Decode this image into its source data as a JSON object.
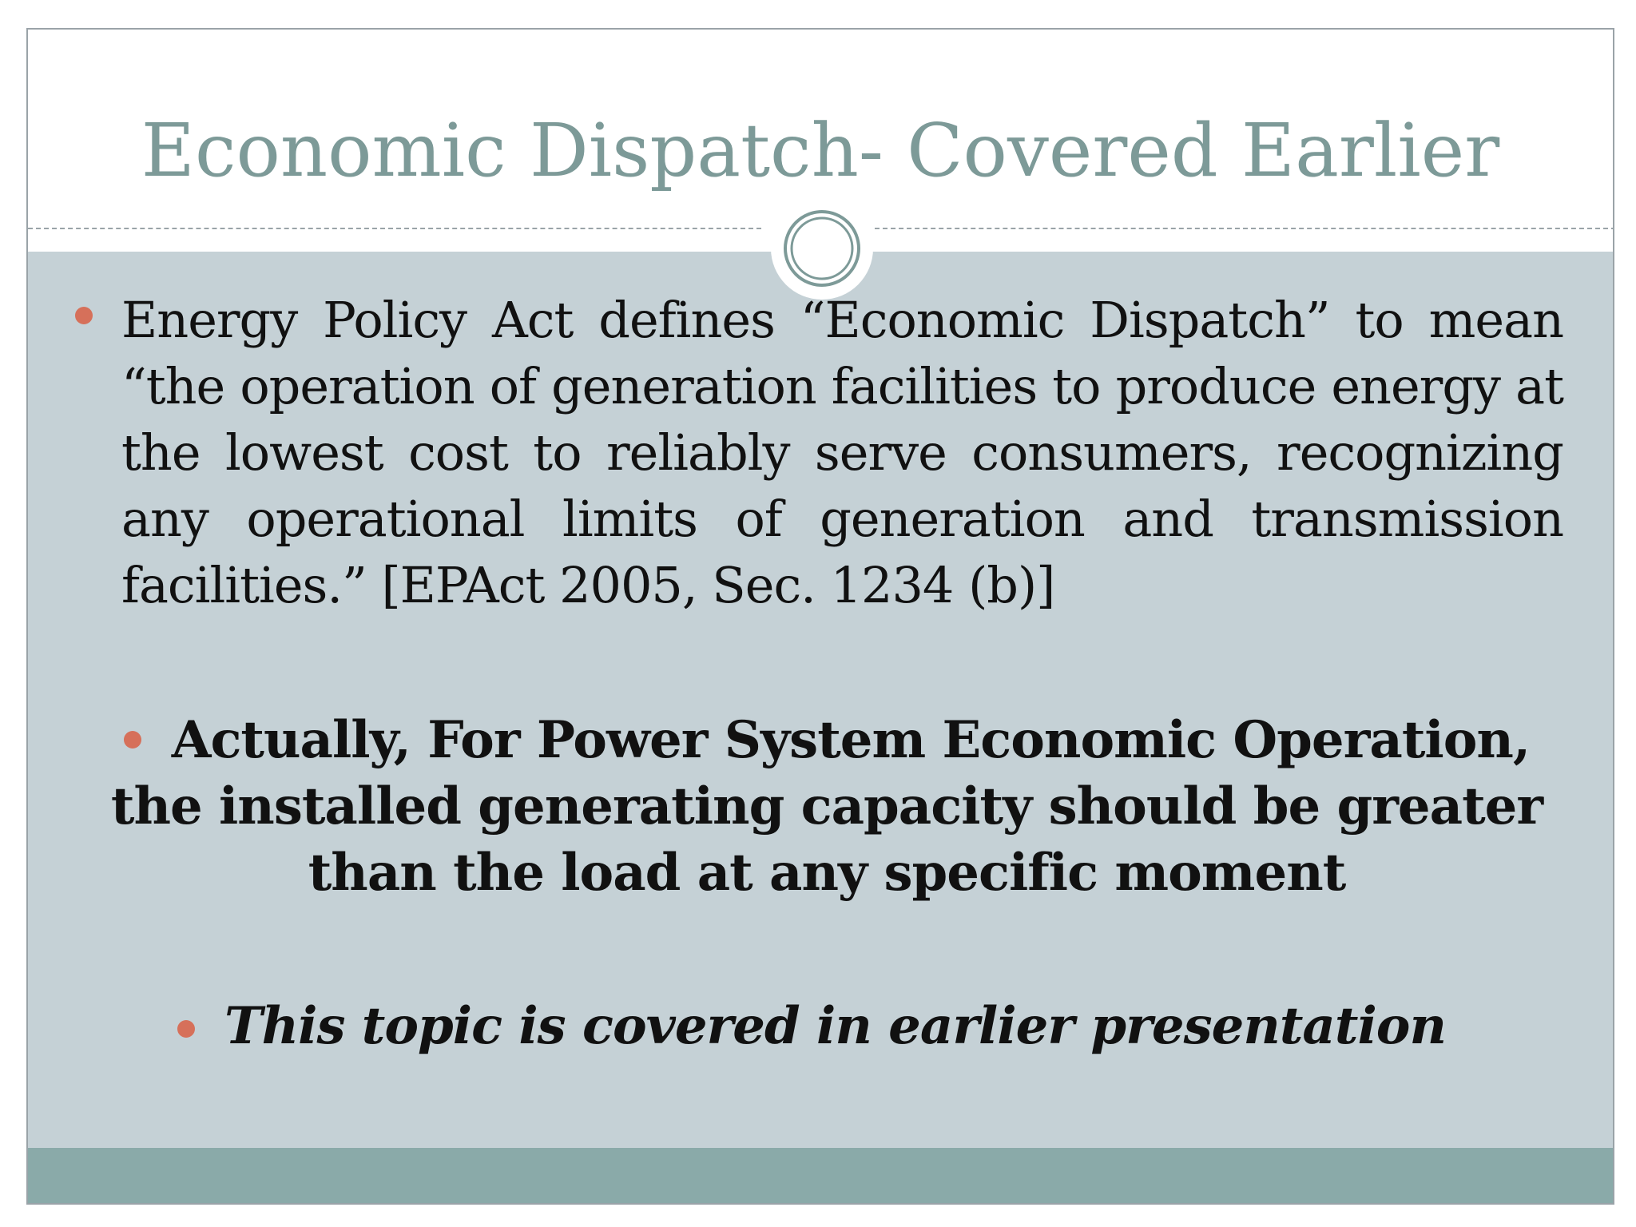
{
  "slide": {
    "title": "Economic Dispatch- Covered Earlier",
    "bullets": [
      {
        "text": "Energy Policy Act defines “Economic Dispatch” to mean “the operation of generation facilities to produce energy at the lowest cost to reliably serve consumers, recognizing any operational limits of generation and transmission facilities.” [EPAct 2005, Sec. 1234 (b)]",
        "style": "regular"
      },
      {
        "text": "Actually, For Power System Economic Operation, the installed generating capacity should be greater than the load at any specific moment",
        "style": "bold"
      },
      {
        "text": "This topic is covered in earlier presentation",
        "style": "bold-italic"
      }
    ]
  },
  "colors": {
    "title": "#7d9a98",
    "content_background": "#c5d1d6",
    "footer_band": "#8aaaa9",
    "bullet": "#d6705a",
    "text": "#111111"
  },
  "icons": {
    "ornament": "double-ring-icon",
    "bullet": "dot-bullet-icon"
  }
}
